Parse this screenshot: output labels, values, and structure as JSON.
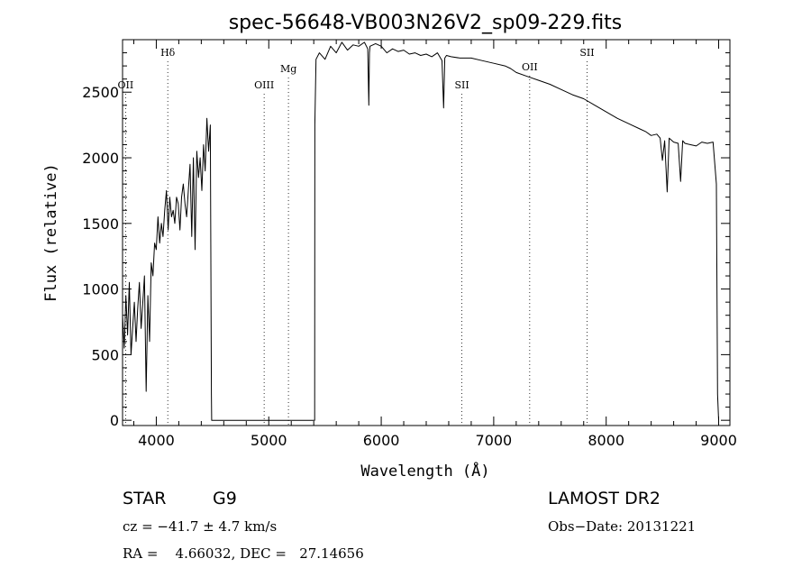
{
  "chart_data": {
    "type": "line",
    "title": "spec-56648-VB003N26V2_sp09-229.fits",
    "xlabel": "Wavelength (Å)",
    "ylabel": "Flux (relative)",
    "xlim": [
      3700,
      9100
    ],
    "ylim": [
      -40,
      2900
    ],
    "xticks": [
      4000,
      5000,
      6000,
      7000,
      8000,
      9000
    ],
    "yticks": [
      0,
      500,
      1000,
      1500,
      2000,
      2500
    ],
    "grid": false,
    "spectral_lines": [
      {
        "label": "OII",
        "x": 3727
      },
      {
        "label": "Hδ",
        "x": 4102
      },
      {
        "label": "OIII",
        "x": 4959
      },
      {
        "label": "Mg",
        "x": 5175
      },
      {
        "label": "SII",
        "x": 6717
      },
      {
        "label": "OII",
        "x": 7320
      },
      {
        "label": "SII",
        "x": 7830
      }
    ],
    "series": [
      {
        "x": [
          3700,
          3715,
          3730,
          3745,
          3760,
          3775,
          3790,
          3805,
          3820,
          3835,
          3850,
          3865,
          3880,
          3895,
          3910,
          3925,
          3940,
          3955,
          3970,
          3985,
          4000,
          4015,
          4030,
          4045,
          4060,
          4075,
          4090,
          4105,
          4120,
          4135,
          4150,
          4165,
          4180,
          4195,
          4210,
          4225,
          4240,
          4255,
          4270,
          4285,
          4300,
          4315,
          4330,
          4345,
          4360,
          4375,
          4390,
          4405,
          4420,
          4435,
          4450,
          4465,
          4480,
          4490,
          4492,
          4500,
          4600,
          4800,
          5000,
          5200,
          5400,
          5408,
          5410,
          5420,
          5450,
          5500,
          5550,
          5600,
          5650,
          5700,
          5750,
          5800,
          5850,
          5880,
          5890,
          5895,
          5900,
          5950,
          6000,
          6050,
          6100,
          6150,
          6200,
          6250,
          6300,
          6350,
          6400,
          6450,
          6500,
          6540,
          6555,
          6565,
          6580,
          6620,
          6700,
          6800,
          6900,
          7000,
          7100,
          7150,
          7200,
          7300,
          7400,
          7500,
          7600,
          7700,
          7800,
          7900,
          8000,
          8100,
          8200,
          8300,
          8350,
          8400,
          8450,
          8480,
          8500,
          8520,
          8542,
          8560,
          8600,
          8640,
          8662,
          8680,
          8700,
          8750,
          8800,
          8850,
          8900,
          8950,
          8980,
          8990,
          9000
        ],
        "y": [
          800,
          550,
          950,
          650,
          1050,
          500,
          700,
          900,
          600,
          850,
          1050,
          700,
          900,
          1100,
          220,
          950,
          600,
          1200,
          1100,
          1350,
          1300,
          1550,
          1350,
          1500,
          1400,
          1600,
          1750,
          1450,
          1700,
          1550,
          1600,
          1500,
          1700,
          1650,
          1450,
          1700,
          1800,
          1650,
          1550,
          1750,
          1950,
          1400,
          2000,
          1300,
          2050,
          1850,
          2000,
          1750,
          2100,
          1900,
          2300,
          2050,
          2250,
          200,
          0,
          0,
          0,
          0,
          0,
          0,
          0,
          0,
          2250,
          2750,
          2800,
          2750,
          2850,
          2800,
          2880,
          2820,
          2860,
          2850,
          2880,
          2830,
          2400,
          2800,
          2850,
          2870,
          2850,
          2800,
          2830,
          2810,
          2820,
          2790,
          2800,
          2780,
          2790,
          2770,
          2800,
          2740,
          2380,
          2760,
          2780,
          2770,
          2760,
          2760,
          2740,
          2720,
          2700,
          2680,
          2650,
          2620,
          2590,
          2560,
          2520,
          2480,
          2450,
          2400,
          2350,
          2300,
          2260,
          2220,
          2200,
          2170,
          2180,
          2150,
          1980,
          2130,
          1740,
          2150,
          2120,
          2110,
          1820,
          2130,
          2110,
          2100,
          2090,
          2120,
          2110,
          2120,
          1800,
          200,
          0
        ]
      }
    ]
  },
  "info": {
    "object_type": "STAR",
    "subclass": "G9",
    "survey": "LAMOST DR2",
    "cz": "cz = −41.7 ± 4.7 km/s",
    "obs_date": "Obs−Date: 20131221",
    "coords": "RA =    4.66032, DEC =   27.14656"
  }
}
